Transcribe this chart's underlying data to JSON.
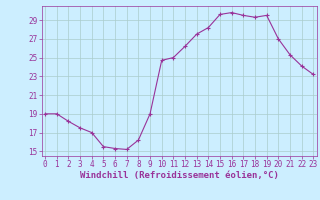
{
  "x": [
    0,
    1,
    2,
    3,
    4,
    5,
    6,
    7,
    8,
    9,
    10,
    11,
    12,
    13,
    14,
    15,
    16,
    17,
    18,
    19,
    20,
    21,
    22,
    23
  ],
  "y": [
    19,
    19,
    18.2,
    17.5,
    17,
    15.5,
    15.3,
    15.2,
    16.2,
    19,
    24.7,
    25,
    26.2,
    27.5,
    28.2,
    29.6,
    29.8,
    29.5,
    29.3,
    29.5,
    27,
    25.3,
    24.1,
    23.2
  ],
  "line_color": "#993399",
  "marker": "+",
  "marker_size": 3,
  "marker_linewidth": 0.8,
  "line_width": 0.8,
  "background_color": "#cceeff",
  "grid_color": "#aacccc",
  "xlabel": "Windchill (Refroidissement éolien,°C)",
  "xlabel_fontsize": 6.5,
  "tick_fontsize": 5.5,
  "tick_color": "#993399",
  "label_color": "#993399",
  "ylim": [
    14.5,
    30.5
  ],
  "xlim": [
    -0.3,
    23.3
  ],
  "yticks": [
    15,
    17,
    19,
    21,
    23,
    25,
    27,
    29
  ],
  "xticks": [
    0,
    1,
    2,
    3,
    4,
    5,
    6,
    7,
    8,
    9,
    10,
    11,
    12,
    13,
    14,
    15,
    16,
    17,
    18,
    19,
    20,
    21,
    22,
    23
  ]
}
